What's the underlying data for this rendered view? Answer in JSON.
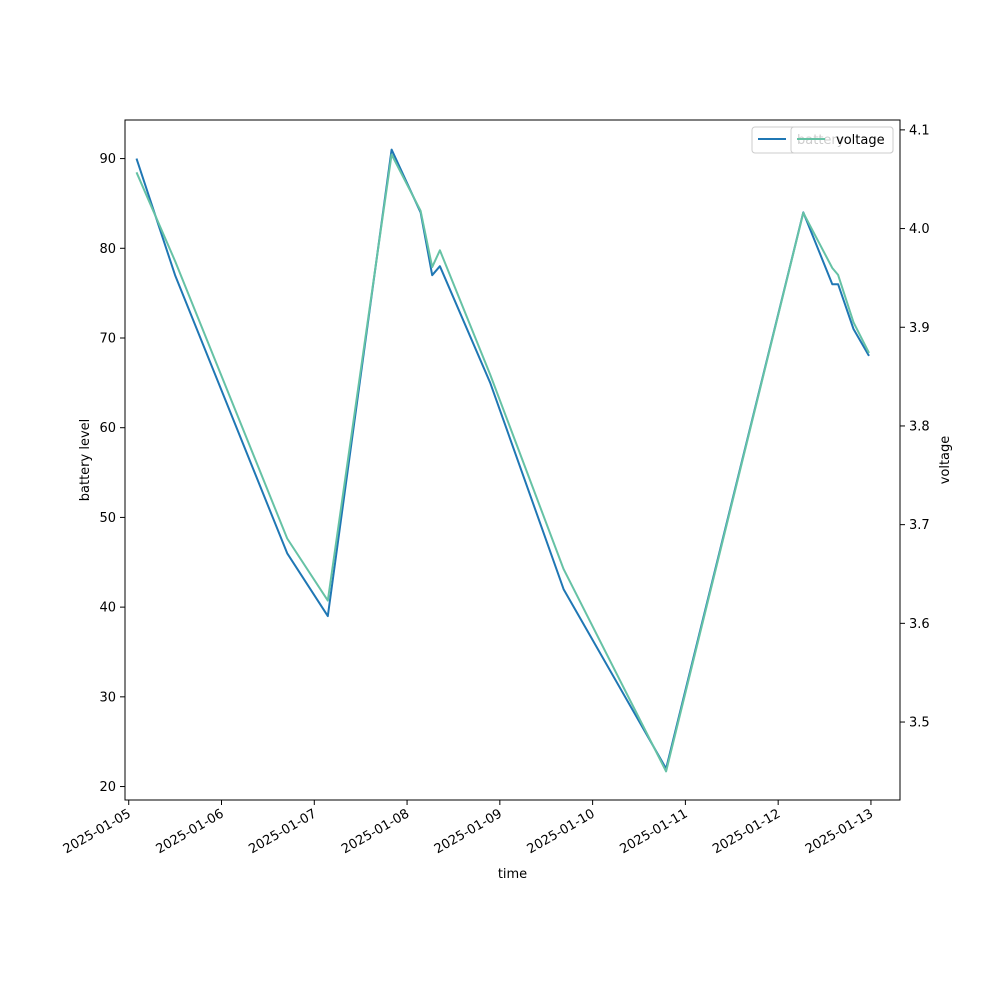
{
  "chart_data": {
    "type": "line",
    "title": "",
    "xlabel": "time",
    "ylabel": "battery level",
    "y2label": "voltage",
    "x_ticks": [
      "2025-01-05",
      "2025-01-06",
      "2025-01-07",
      "2025-01-08",
      "2025-01-09",
      "2025-01-10",
      "2025-01-11",
      "2025-01-12",
      "2025-01-13"
    ],
    "y_ticks": [
      20,
      30,
      40,
      50,
      60,
      70,
      80,
      90
    ],
    "y2_ticks": [
      3.5,
      3.6,
      3.7,
      3.8,
      3.9,
      4.0,
      4.1
    ],
    "xlim": [
      "2025-01-04 23:02",
      "2025-01-13 07:31"
    ],
    "ylim": [
      18.5,
      94.3
    ],
    "y2lim": [
      3.421,
      4.11
    ],
    "grid": false,
    "legend_placement": "top-right",
    "series": [
      {
        "name": "battery",
        "axis": "left",
        "color": "#1f77b4",
        "points": [
          [
            "2025-01-05 02:00",
            90
          ],
          [
            "2025-01-05 12:00",
            77
          ],
          [
            "2025-01-06 17:00",
            46
          ],
          [
            "2025-01-07 03:30",
            39
          ],
          [
            "2025-01-07 20:00",
            91
          ],
          [
            "2025-01-08 03:30",
            84
          ],
          [
            "2025-01-08 06:30",
            77
          ],
          [
            "2025-01-08 08:30",
            78
          ],
          [
            "2025-01-08 21:30",
            65
          ],
          [
            "2025-01-09 16:30",
            42
          ],
          [
            "2025-01-10 19:00",
            22
          ],
          [
            "2025-01-12 06:30",
            84
          ],
          [
            "2025-01-12 14:00",
            76
          ],
          [
            "2025-01-12 15:30",
            76
          ],
          [
            "2025-01-12 19:30",
            71
          ],
          [
            "2025-01-12 23:30",
            68
          ]
        ]
      },
      {
        "name": "voltage",
        "axis": "right",
        "color": "#66c2a5",
        "points": [
          [
            "2025-01-05 02:00",
            4.057
          ],
          [
            "2025-01-05 12:00",
            3.967
          ],
          [
            "2025-01-06 17:00",
            3.686
          ],
          [
            "2025-01-07 03:30",
            3.623
          ],
          [
            "2025-01-07 20:00",
            4.075
          ],
          [
            "2025-01-08 03:30",
            4.018
          ],
          [
            "2025-01-08 06:30",
            3.961
          ],
          [
            "2025-01-08 08:30",
            3.978
          ],
          [
            "2025-01-08 21:30",
            3.852
          ],
          [
            "2025-01-09 16:30",
            3.655
          ],
          [
            "2025-01-10 19:00",
            3.45
          ],
          [
            "2025-01-12 06:30",
            4.016
          ],
          [
            "2025-01-12 14:00",
            3.96
          ],
          [
            "2025-01-12 15:30",
            3.953
          ],
          [
            "2025-01-12 19:30",
            3.905
          ],
          [
            "2025-01-12 23:30",
            3.874
          ]
        ]
      }
    ]
  }
}
